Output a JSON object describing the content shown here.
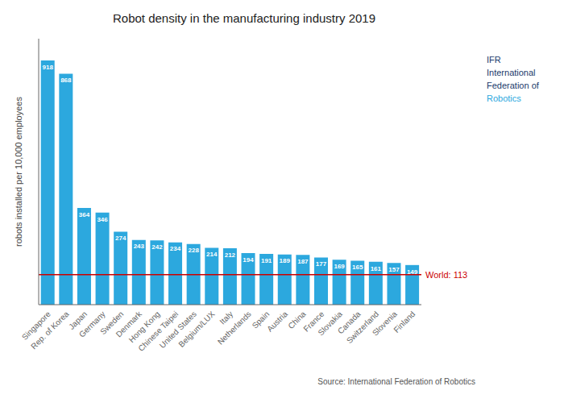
{
  "chart_data": {
    "type": "bar",
    "title": "Robot density in the manufacturing industry 2019",
    "ylabel": "robots installed per 10,000 employees",
    "categories": [
      "Singapore",
      "Rep. of Korea",
      "Japan",
      "Germany",
      "Sweden",
      "Denmark",
      "Hong Kong",
      "Chinese Taipei",
      "United States",
      "Belgium/LUX",
      "Italy",
      "Netherlands",
      "Spain",
      "Austria",
      "China",
      "France",
      "Slovakia",
      "Canada",
      "Switzerland",
      "Slovenia",
      "Finland"
    ],
    "values": [
      918,
      868,
      364,
      346,
      274,
      243,
      242,
      234,
      228,
      214,
      212,
      194,
      191,
      189,
      187,
      177,
      169,
      165,
      161,
      157,
      149
    ],
    "color": "#2CA8DE",
    "ylim": [
      0,
      1000
    ],
    "grid": false,
    "data_labels": true,
    "tick_labels": "x",
    "world_line": {
      "value": 113,
      "label": "World: 113",
      "color": "#CC0000"
    },
    "source": {
      "text": "Source: International Federation of Robotics",
      "color": "#555555"
    },
    "annotations": [
      {
        "text": "IFR",
        "color": "#1A3A6B"
      },
      {
        "text": "International",
        "color": "#1A3A6B"
      },
      {
        "text": "Federation of",
        "color": "#1A3A6B"
      },
      {
        "text": "Robotics",
        "color": "#2CA8DE"
      }
    ]
  }
}
